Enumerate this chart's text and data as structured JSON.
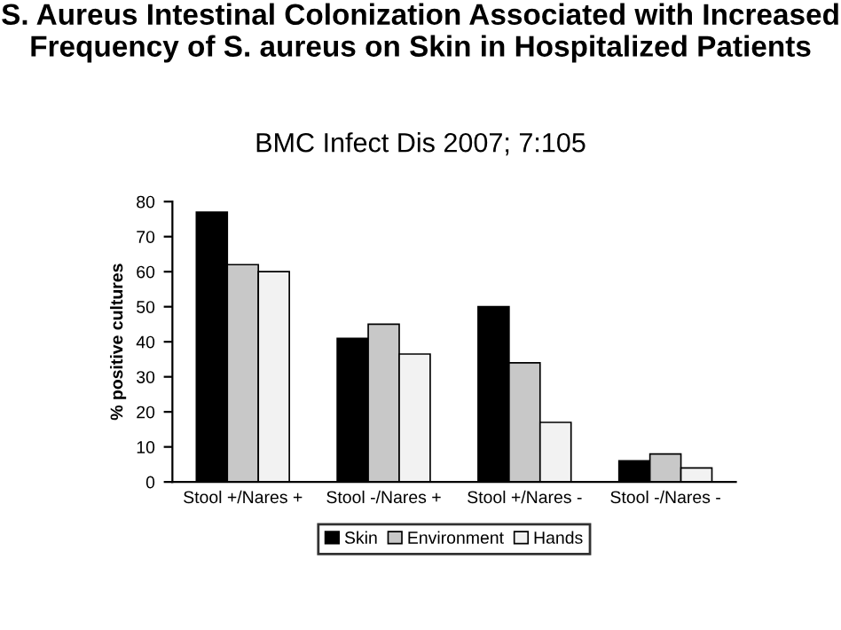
{
  "chart_data": {
    "type": "bar",
    "title": "S. Aureus Intestinal Colonization Associated with Increased Frequency of S. aureus on Skin in Hospitalized Patients",
    "subtitle": "BMC Infect Dis 2007; 7:105",
    "ylabel": "% positive cultures",
    "categories": [
      "Stool +/Nares +",
      "Stool -/Nares +",
      "Stool +/Nares -",
      "Stool -/Nares -"
    ],
    "series": [
      {
        "name": "Skin",
        "color": "#000000",
        "values": [
          77,
          41,
          50,
          6
        ]
      },
      {
        "name": "Environment",
        "color": "#c8c8c8",
        "values": [
          62,
          45,
          34,
          8
        ]
      },
      {
        "name": "Hands",
        "color": "#f2f2f2",
        "values": [
          60,
          36.5,
          17,
          4
        ]
      }
    ],
    "ylim": [
      0,
      80
    ],
    "yticks": [
      0,
      10,
      20,
      30,
      40,
      50,
      60,
      70,
      80
    ],
    "legend": "bottom",
    "grid": false
  }
}
